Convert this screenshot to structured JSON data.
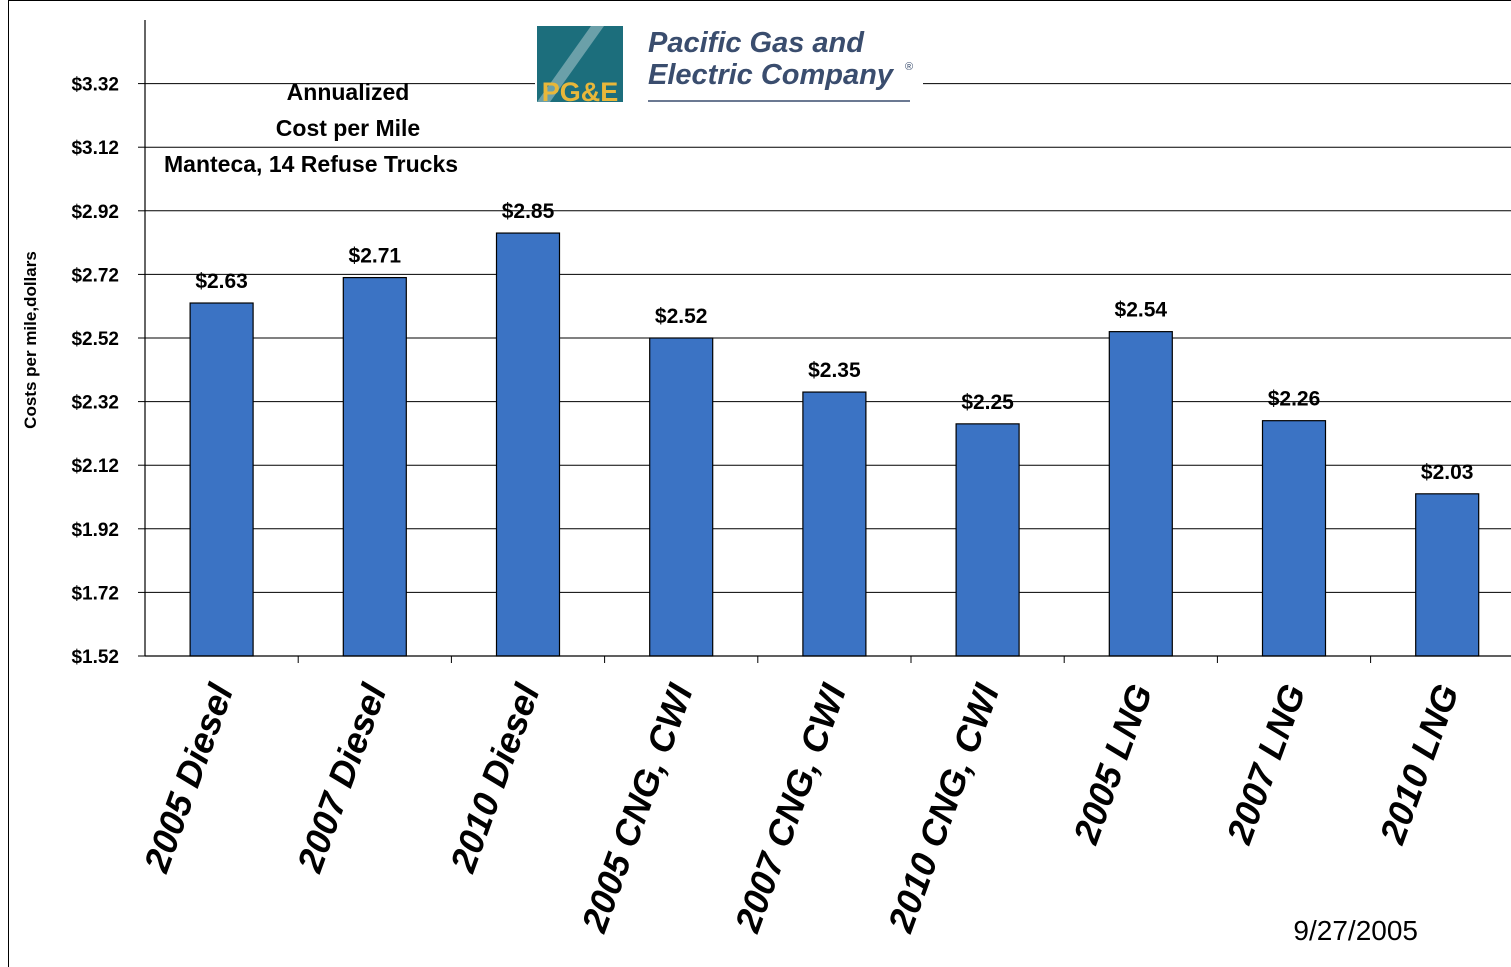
{
  "chart_data": {
    "type": "bar",
    "title_lines": [
      "Annualized",
      "Cost per Mile",
      "Manteca, 14 Refuse Trucks"
    ],
    "xlabel": "",
    "ylabel": "Costs per mile,dollars",
    "ylim": [
      1.52,
      3.52
    ],
    "yticks": [
      1.52,
      1.72,
      1.92,
      2.12,
      2.32,
      2.52,
      2.72,
      2.92,
      3.12,
      3.32
    ],
    "ytick_labels": [
      "$1.52",
      "$1.72",
      "$1.92",
      "$2.12",
      "$2.32",
      "$2.52",
      "$2.72",
      "$2.92",
      "$3.12",
      "$3.32"
    ],
    "categories": [
      "2005 Diesel",
      "2007 Diesel",
      "2010 Diesel",
      "2005 CNG, CWI",
      "2007 CNG, CWI",
      "2010 CNG, CWI",
      "2005 LNG",
      "2007 LNG",
      "2010 LNG"
    ],
    "values": [
      2.63,
      2.71,
      2.85,
      2.52,
      2.35,
      2.25,
      2.54,
      2.26,
      2.03
    ],
    "value_labels": [
      "$2.63",
      "$2.71",
      "$2.85",
      "$2.52",
      "$2.35",
      "$2.25",
      "$2.54",
      "$2.26",
      "$2.03"
    ],
    "grid": true,
    "legend": "none",
    "bar_color": "#3b73c4"
  },
  "logo": {
    "mark_text": "PG&E",
    "name_line1": "Pacific Gas and",
    "name_line2": "Electric Company",
    "registered": "®"
  },
  "date": "9/27/2005"
}
